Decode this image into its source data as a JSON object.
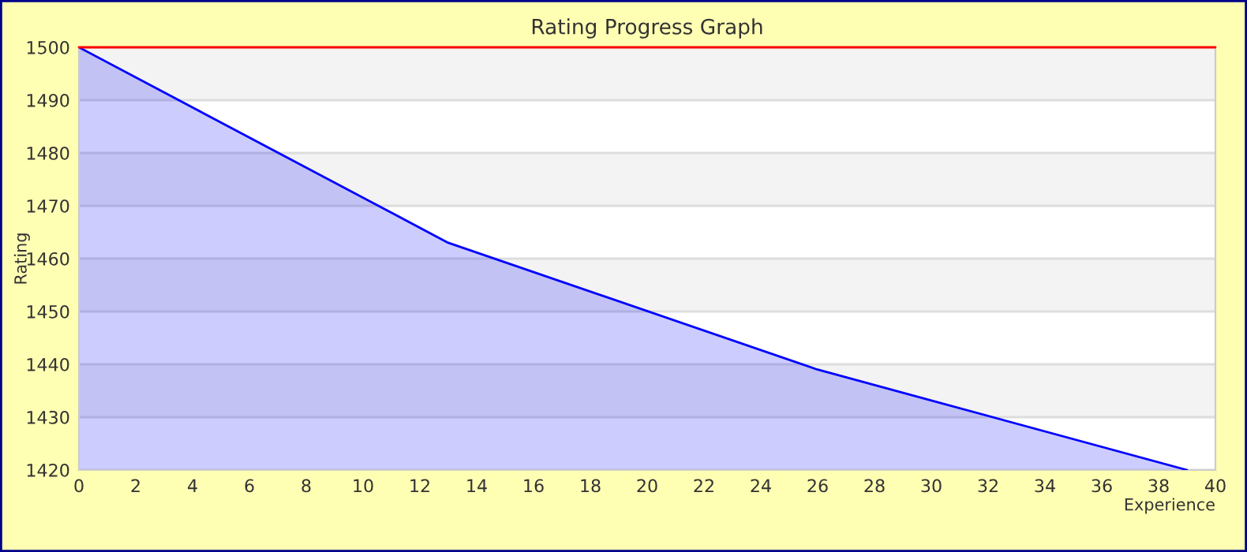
{
  "chart_data": {
    "type": "area",
    "title": "Rating Progress Graph",
    "xlabel": "Experience",
    "ylabel": "Rating",
    "series": [
      {
        "color": "#0000ff",
        "x": [
          0,
          13,
          26,
          39
        ],
        "values": [
          1500,
          1463,
          1439,
          1420
        ]
      }
    ],
    "xlim": [
      0,
      40
    ],
    "xticks": [
      0,
      2,
      4,
      6,
      8,
      10,
      12,
      14,
      16,
      18,
      20,
      22,
      24,
      26,
      28,
      30,
      32,
      34,
      36,
      38,
      40
    ],
    "ylim": [
      1420,
      1500
    ],
    "yticks": [
      1420,
      1430,
      1440,
      1450,
      1460,
      1470,
      1480,
      1490,
      1500
    ],
    "grid": "y",
    "legend": false,
    "ref_lines": [
      {
        "axis": "y",
        "value": 1500,
        "color": "#ff0000"
      }
    ]
  }
}
